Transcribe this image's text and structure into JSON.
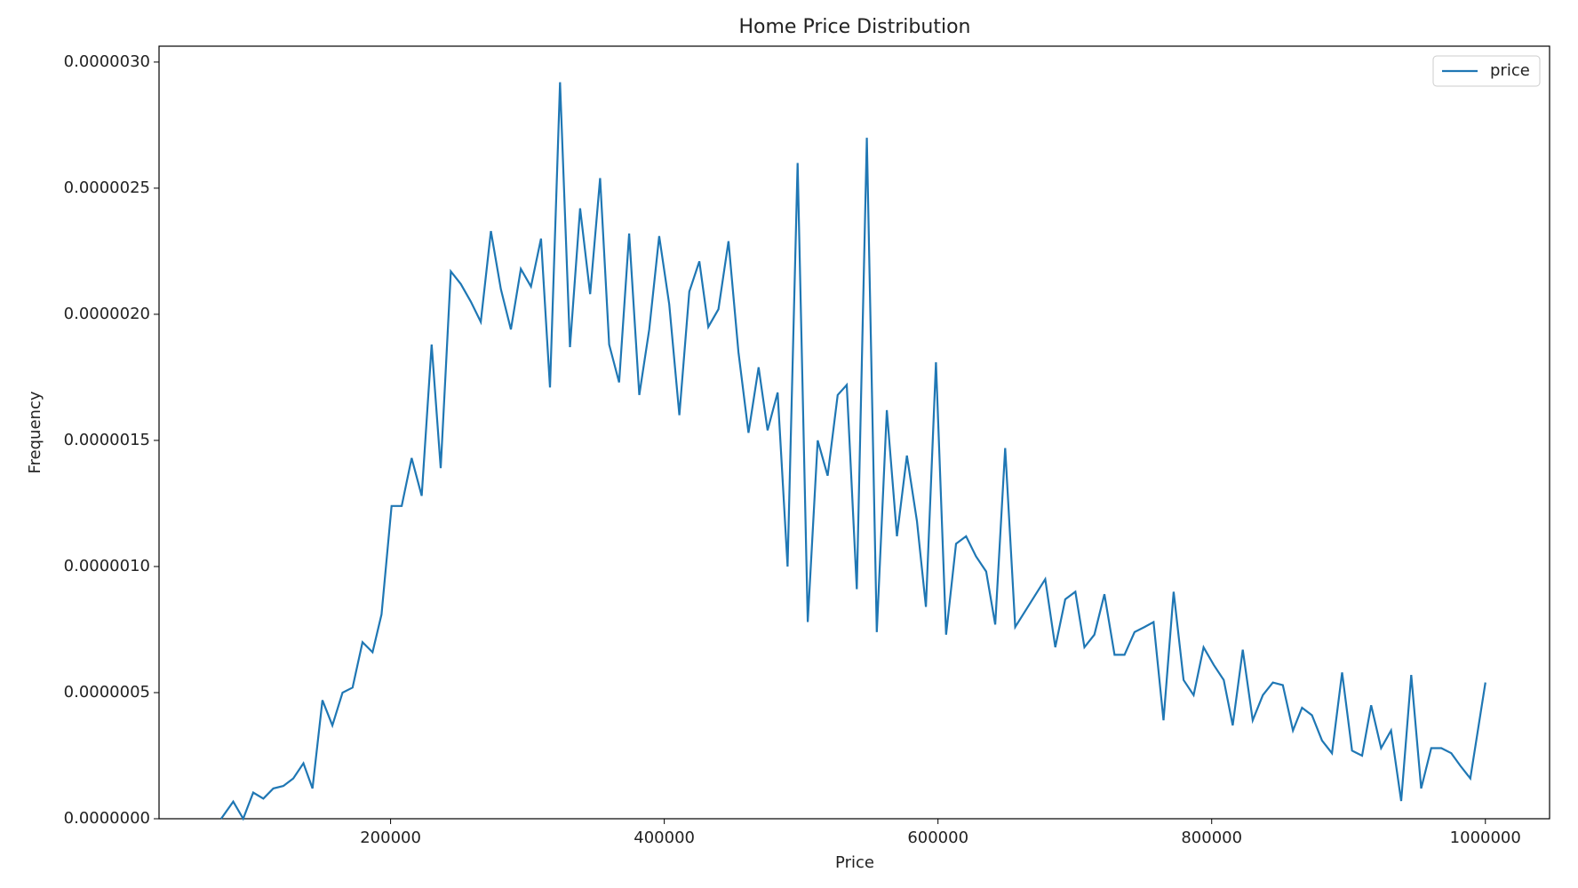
{
  "chart_data": {
    "type": "line",
    "title": "Home Price Distribution",
    "x_label": "Price",
    "y_label": "Frequency",
    "x": [
      76200,
      85000,
      92300,
      99600,
      107000,
      114300,
      121600,
      128900,
      136300,
      142900,
      150200,
      157500,
      164900,
      172200,
      179500,
      186800,
      193400,
      200700,
      208100,
      215400,
      222700,
      230000,
      236600,
      244000,
      251300,
      258600,
      265900,
      273300,
      280600,
      287900,
      295200,
      302600,
      309900,
      316500,
      323800,
      331100,
      338500,
      345800,
      353100,
      359700,
      367000,
      374300,
      381700,
      389000,
      396300,
      403600,
      411000,
      418300,
      425600,
      432200,
      439600,
      446900,
      454200,
      461500,
      468900,
      475500,
      482800,
      490100,
      497400,
      504800,
      512100,
      519400,
      526700,
      533300,
      540700,
      548000,
      555300,
      562600,
      570000,
      577300,
      584600,
      591200,
      598500,
      605900,
      613200,
      620500,
      627800,
      635200,
      641800,
      649100,
      656400,
      678400,
      685700,
      693000,
      700400,
      707000,
      714300,
      721600,
      729000,
      736300,
      743600,
      750900,
      757500,
      764800,
      772200,
      779500,
      786800,
      794100,
      801500,
      808800,
      815400,
      822700,
      830000,
      837400,
      844700,
      852000,
      859400,
      866000,
      873300,
      880600,
      887900,
      895300,
      902600,
      909900,
      916500,
      923800,
      931100,
      938500,
      945800,
      953100,
      960400,
      967800,
      975100,
      981700,
      989000,
      1000000
    ],
    "series": [
      {
        "name": "price",
        "color": "#1f77b4",
        "values": [
          0,
          6.8e-08,
          0,
          1.04e-07,
          8e-08,
          1.2e-07,
          1.3e-07,
          1.6e-07,
          2.2e-07,
          1.2e-07,
          4.7e-07,
          3.7e-07,
          5e-07,
          5.2e-07,
          7e-07,
          6.6e-07,
          8.1e-07,
          1.24e-06,
          1.24e-06,
          1.43e-06,
          1.28e-06,
          1.88e-06,
          1.39e-06,
          2.17e-06,
          2.12e-06,
          2.05e-06,
          1.97e-06,
          2.33e-06,
          2.1e-06,
          1.94e-06,
          2.18e-06,
          2.11e-06,
          2.3e-06,
          1.71e-06,
          2.92e-06,
          1.87e-06,
          2.42e-06,
          2.08e-06,
          2.54e-06,
          1.88e-06,
          1.73e-06,
          2.32e-06,
          1.68e-06,
          1.94e-06,
          2.31e-06,
          2.04e-06,
          1.6e-06,
          2.09e-06,
          2.21e-06,
          1.95e-06,
          2.02e-06,
          2.29e-06,
          1.85e-06,
          1.53e-06,
          1.79e-06,
          1.54e-06,
          1.69e-06,
          1e-06,
          2.6e-06,
          7.8e-07,
          1.5e-06,
          1.36e-06,
          1.68e-06,
          1.72e-06,
          9.1e-07,
          2.7e-06,
          7.4e-07,
          1.62e-06,
          1.12e-06,
          1.44e-06,
          1.18e-06,
          8.4e-07,
          1.81e-06,
          7.3e-07,
          1.09e-06,
          1.12e-06,
          1.04e-06,
          9.8e-07,
          7.7e-07,
          1.47e-06,
          7.6e-07,
          9.5e-07,
          6.8e-07,
          8.7e-07,
          9e-07,
          6.8e-07,
          7.3e-07,
          8.9e-07,
          6.5e-07,
          6.5e-07,
          7.4e-07,
          7.6e-07,
          7.8e-07,
          3.9e-07,
          9e-07,
          5.5e-07,
          4.9e-07,
          6.8e-07,
          6.1e-07,
          5.5e-07,
          3.7e-07,
          6.7e-07,
          3.9e-07,
          4.9e-07,
          5.4e-07,
          5.3e-07,
          3.5e-07,
          4.4e-07,
          4.1e-07,
          3.1e-07,
          2.6e-07,
          5.8e-07,
          2.7e-07,
          2.5e-07,
          4.5e-07,
          2.8e-07,
          3.5e-07,
          7e-08,
          5.7e-07,
          1.2e-07,
          2.8e-07,
          2.8e-07,
          2.6e-07,
          2.1e-07,
          1.6e-07,
          5.4e-07
        ]
      }
    ],
    "xlim": [
      30800,
      1046900
    ],
    "xticks": [
      200000,
      400000,
      600000,
      800000,
      1000000
    ],
    "ylim": [
      0,
      3.063e-06
    ],
    "yticks": [
      {
        "value": 0,
        "label": "0.0000000"
      },
      {
        "value": 5e-07,
        "label": "0.0000005"
      },
      {
        "value": 1e-06,
        "label": "0.0000010"
      },
      {
        "value": 1.5e-06,
        "label": "0.0000015"
      },
      {
        "value": 2e-06,
        "label": "0.0000020"
      },
      {
        "value": 2.5e-06,
        "label": "0.0000025"
      },
      {
        "value": 3e-06,
        "label": "0.0000030"
      }
    ],
    "legend": "upper right"
  }
}
